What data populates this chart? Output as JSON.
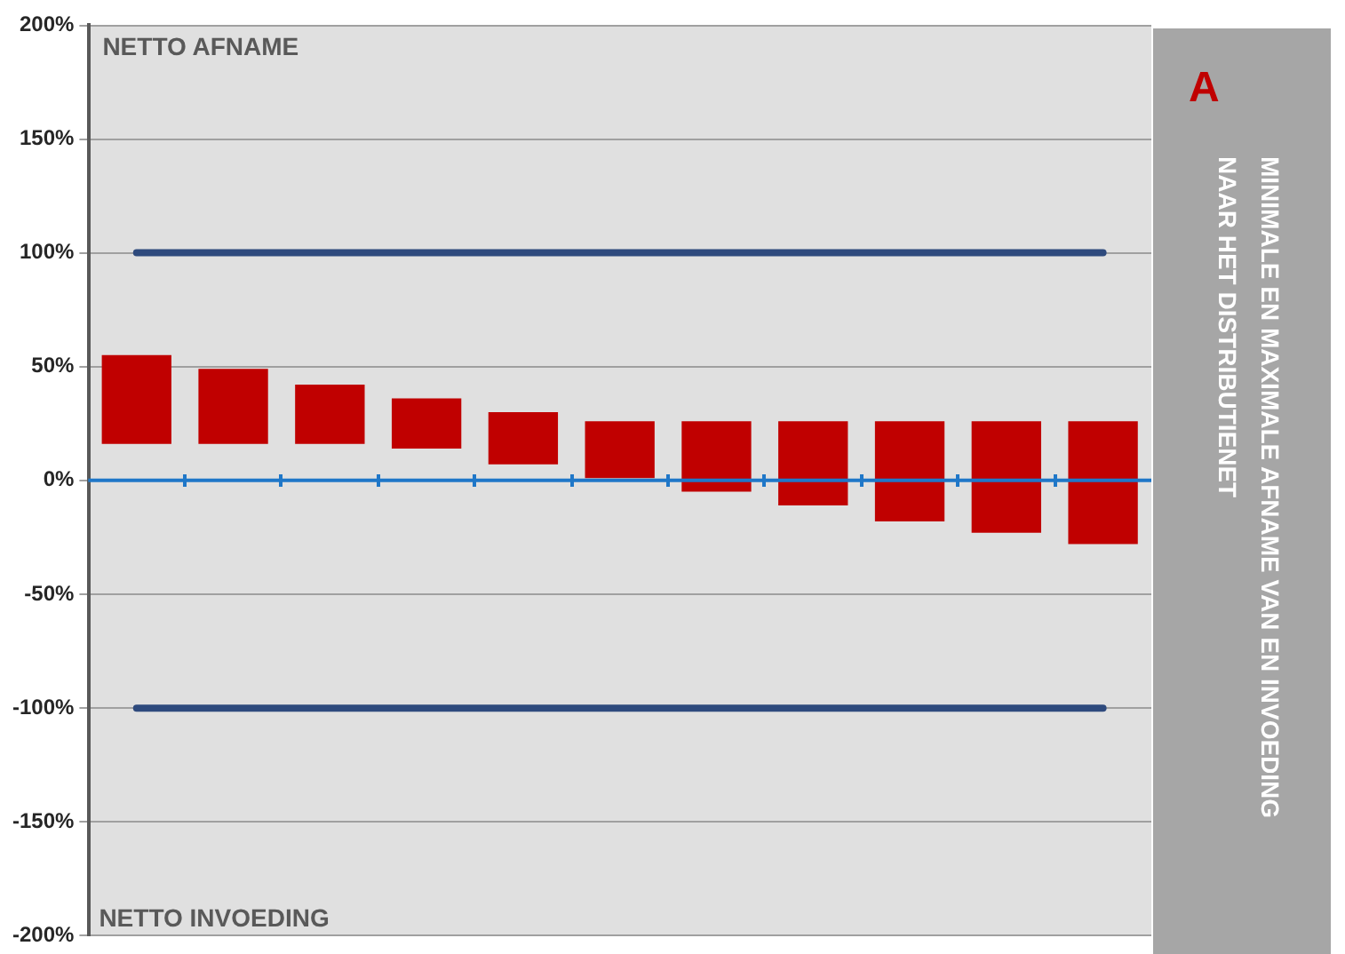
{
  "chart_data": {
    "type": "bar",
    "title": "MINIMALE EN MAXIMALE AFNAME VAN EN INVOEDING NAAR HET DISTRIBUTIENET",
    "annotations": [
      "NETTO AFNAME",
      "NETTO INVOEDING",
      "A"
    ],
    "categories": [
      null,
      null,
      null,
      null,
      null,
      null,
      null,
      null,
      null,
      null,
      null
    ],
    "series": [
      {
        "color": "#c00000",
        "base": [
          16,
          16,
          16,
          14,
          7,
          1,
          -5,
          -11,
          -18,
          -23,
          -28
        ],
        "values": [
          39,
          33,
          26,
          22,
          23,
          25,
          31,
          37,
          44,
          49,
          54
        ]
      },
      {
        "type": "line",
        "color": "#2e4a7d",
        "values": [
          100,
          100,
          100,
          100,
          100,
          100,
          100,
          100,
          100,
          100,
          100
        ]
      },
      {
        "type": "line",
        "color": "#2e4a7d",
        "values": [
          -100,
          -100,
          -100,
          -100,
          -100,
          -100,
          -100,
          -100,
          -100,
          -100,
          -100
        ]
      }
    ],
    "ylim": [
      -200,
      200
    ],
    "yticks": [
      {
        "value": 200,
        "label": "200%"
      },
      {
        "value": 150,
        "label": "150%"
      },
      {
        "value": 100,
        "label": "100%"
      },
      {
        "value": 50,
        "label": "50%"
      },
      {
        "value": 0,
        "label": "0%"
      },
      {
        "value": -50,
        "label": "-50%"
      },
      {
        "value": -100,
        "label": "-100%"
      },
      {
        "value": -150,
        "label": "-150%"
      },
      {
        "value": -200,
        "label": "-200%"
      }
    ],
    "grid": "y",
    "ref_lines": [
      {
        "axis": "y",
        "value": 0,
        "color": "#1f77c8"
      }
    ],
    "marker": "none",
    "legend": false
  }
}
